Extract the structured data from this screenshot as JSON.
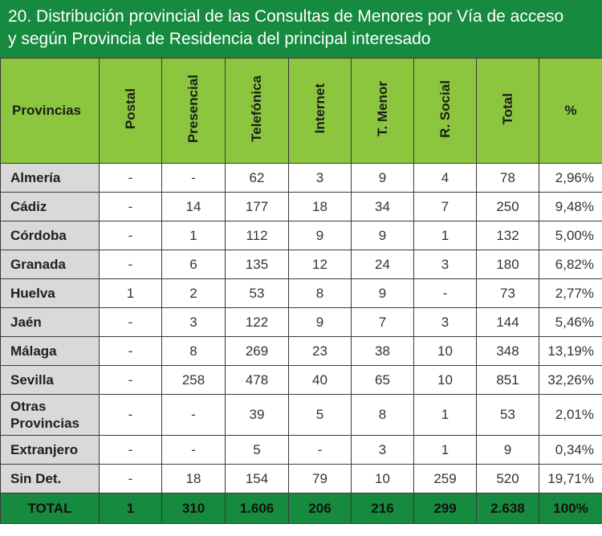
{
  "title": {
    "line1": "20. Distribución provincial de las Consultas de Menores por Vía de acceso",
    "line2": "y según Provincia de Residencia del principal interesado"
  },
  "columns": [
    "Provincias",
    "Postal",
    "Presencial",
    "Telefónica",
    "Internet",
    "T. Menor",
    "R. Social",
    "Total",
    "%"
  ],
  "rows": [
    {
      "label": "Almería",
      "values": [
        "-",
        "-",
        "62",
        "3",
        "9",
        "4",
        "78",
        "2,96%"
      ]
    },
    {
      "label": "Cádiz",
      "values": [
        "-",
        "14",
        "177",
        "18",
        "34",
        "7",
        "250",
        "9,48%"
      ]
    },
    {
      "label": "Córdoba",
      "values": [
        "-",
        "1",
        "112",
        "9",
        "9",
        "1",
        "132",
        "5,00%"
      ]
    },
    {
      "label": "Granada",
      "values": [
        "-",
        "6",
        "135",
        "12",
        "24",
        "3",
        "180",
        "6,82%"
      ]
    },
    {
      "label": "Huelva",
      "values": [
        "1",
        "2",
        "53",
        "8",
        "9",
        "-",
        "73",
        "2,77%"
      ]
    },
    {
      "label": "Jaén",
      "values": [
        "-",
        "3",
        "122",
        "9",
        "7",
        "3",
        "144",
        "5,46%"
      ]
    },
    {
      "label": "Málaga",
      "values": [
        "-",
        "8",
        "269",
        "23",
        "38",
        "10",
        "348",
        "13,19%"
      ]
    },
    {
      "label": "Sevilla",
      "values": [
        "-",
        "258",
        "478",
        "40",
        "65",
        "10",
        "851",
        "32,26%"
      ]
    },
    {
      "label_lines": [
        "Otras",
        "Provincias"
      ],
      "values": [
        "-",
        "-",
        "39",
        "5",
        "8",
        "1",
        "53",
        "2,01%"
      ]
    },
    {
      "label": "Extranjero",
      "values": [
        "-",
        "-",
        "5",
        "-",
        "3",
        "1",
        "9",
        "0,34%"
      ]
    },
    {
      "label": "Sin Det.",
      "values": [
        "-",
        "18",
        "154",
        "79",
        "10",
        "259",
        "520",
        "19,71%"
      ]
    }
  ],
  "total": {
    "label": "TOTAL",
    "values": [
      "1",
      "310",
      "1.606",
      "206",
      "216",
      "299",
      "2.638",
      "100%"
    ]
  },
  "colors": {
    "title_bg": "#168a3f",
    "header_bg": "#8cc63f",
    "row_label_bg": "#d9d9d9",
    "total_bg": "#168a3f"
  }
}
